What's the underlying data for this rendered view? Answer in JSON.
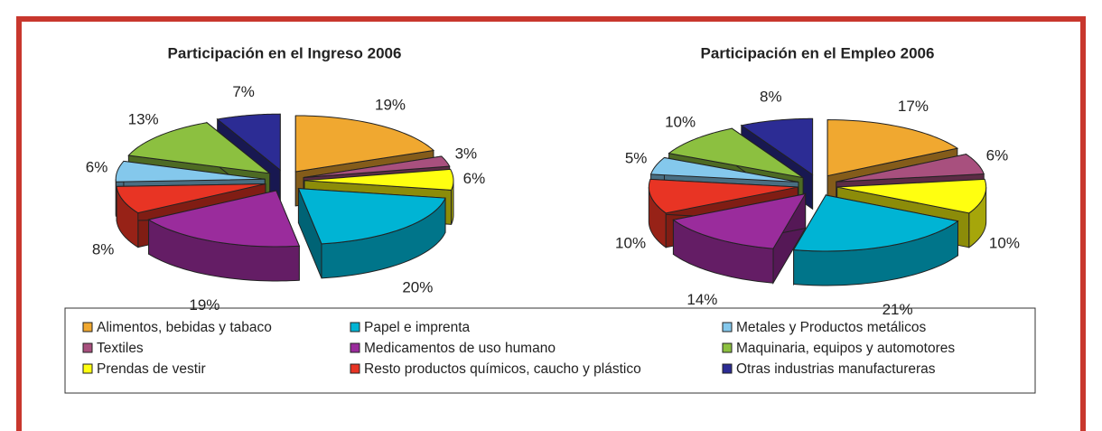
{
  "legend": {
    "labels": [
      "Alimentos, bebidas y tabaco",
      "Textiles",
      "Prendas de vestir",
      "Papel e imprenta",
      "Medicamentos de uso humano",
      "Resto productos químicos, caucho y plástico",
      "Metales y Productos metálicos",
      "Maquinaria, equipos y automotores",
      "Otras industrias manufactureras"
    ],
    "colors": [
      "#f0a830",
      "#a8507e",
      "#ffff10",
      "#00b4d4",
      "#9a2c9c",
      "#e83424",
      "#84c8ec",
      "#8cc040",
      "#2c2c94"
    ]
  },
  "chart_data": [
    {
      "type": "pie",
      "title": "Participación en el Ingreso 2006",
      "values": [
        19,
        3,
        6,
        20,
        19,
        8,
        6,
        13,
        7
      ],
      "value_labels": [
        "19%",
        "3%",
        "6%",
        "20%",
        "19%",
        "8%",
        "6%",
        "13%",
        "7%"
      ]
    },
    {
      "type": "pie",
      "title": "Participación en el Empleo 2006",
      "values": [
        17,
        6,
        10,
        21,
        14,
        10,
        5,
        10,
        8
      ],
      "value_labels": [
        "17%",
        "6%",
        "10%",
        "21%",
        "14%",
        "10%",
        "5%",
        "10%",
        "8%"
      ]
    }
  ]
}
